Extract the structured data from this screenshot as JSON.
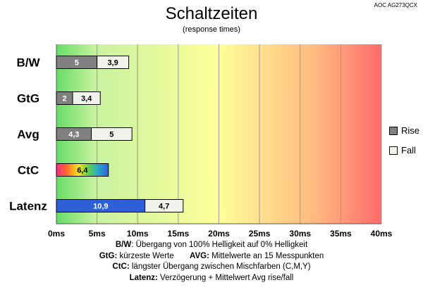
{
  "header": {
    "title": "Schaltzeiten",
    "subtitle": "(response times)",
    "model": "AOC AG273QCX"
  },
  "colors": {
    "rise": "#808080",
    "fall": "#f2f2ec",
    "latenz_rise": "#2f5fd8",
    "gradient_start": "#66dd66",
    "gradient_mid": "#ffff99",
    "gradient_end": "#ff6b6b"
  },
  "chart_data": {
    "type": "bar",
    "orientation": "horizontal",
    "stacked": true,
    "categories": [
      "B/W",
      "GtG",
      "Avg",
      "CtC",
      "Latenz"
    ],
    "series": [
      {
        "name": "Rise",
        "values": [
          5,
          2,
          4.3,
          6.4,
          10.9
        ],
        "labels": [
          "5",
          "2",
          "4,3",
          "6,4",
          "10,9"
        ]
      },
      {
        "name": "Fall",
        "values": [
          3.9,
          3.4,
          5,
          null,
          4.7
        ],
        "labels": [
          "3,9",
          "3,4",
          "5",
          "",
          "4,7"
        ]
      }
    ],
    "xlim": [
      0,
      40
    ],
    "xticks": [
      0,
      5,
      10,
      15,
      20,
      25,
      30,
      35,
      40
    ],
    "xtick_labels": [
      "0ms",
      "5ms",
      "10ms",
      "15ms",
      "20ms",
      "25ms",
      "30ms",
      "35ms",
      "40ms"
    ],
    "grid": true,
    "legend_position": "right"
  },
  "notes": [
    {
      "bold": "B/W",
      "text": ":  Übergang von 100% Helligkeit auf 0% Helligkeit"
    },
    {
      "bold": "GtG:",
      "text": " kürzeste  Werte",
      "bold2": "AVG:",
      "text2": " Mittelwerte  an 15 Messpunkten"
    },
    {
      "bold": "CtC:",
      "text": " längster Übergang  zwischen Mischfarben  (C,M,Y)"
    },
    {
      "bold": "Latenz:",
      "text": " Verzögerung  + Mittelwert Avg rise/fall"
    }
  ]
}
